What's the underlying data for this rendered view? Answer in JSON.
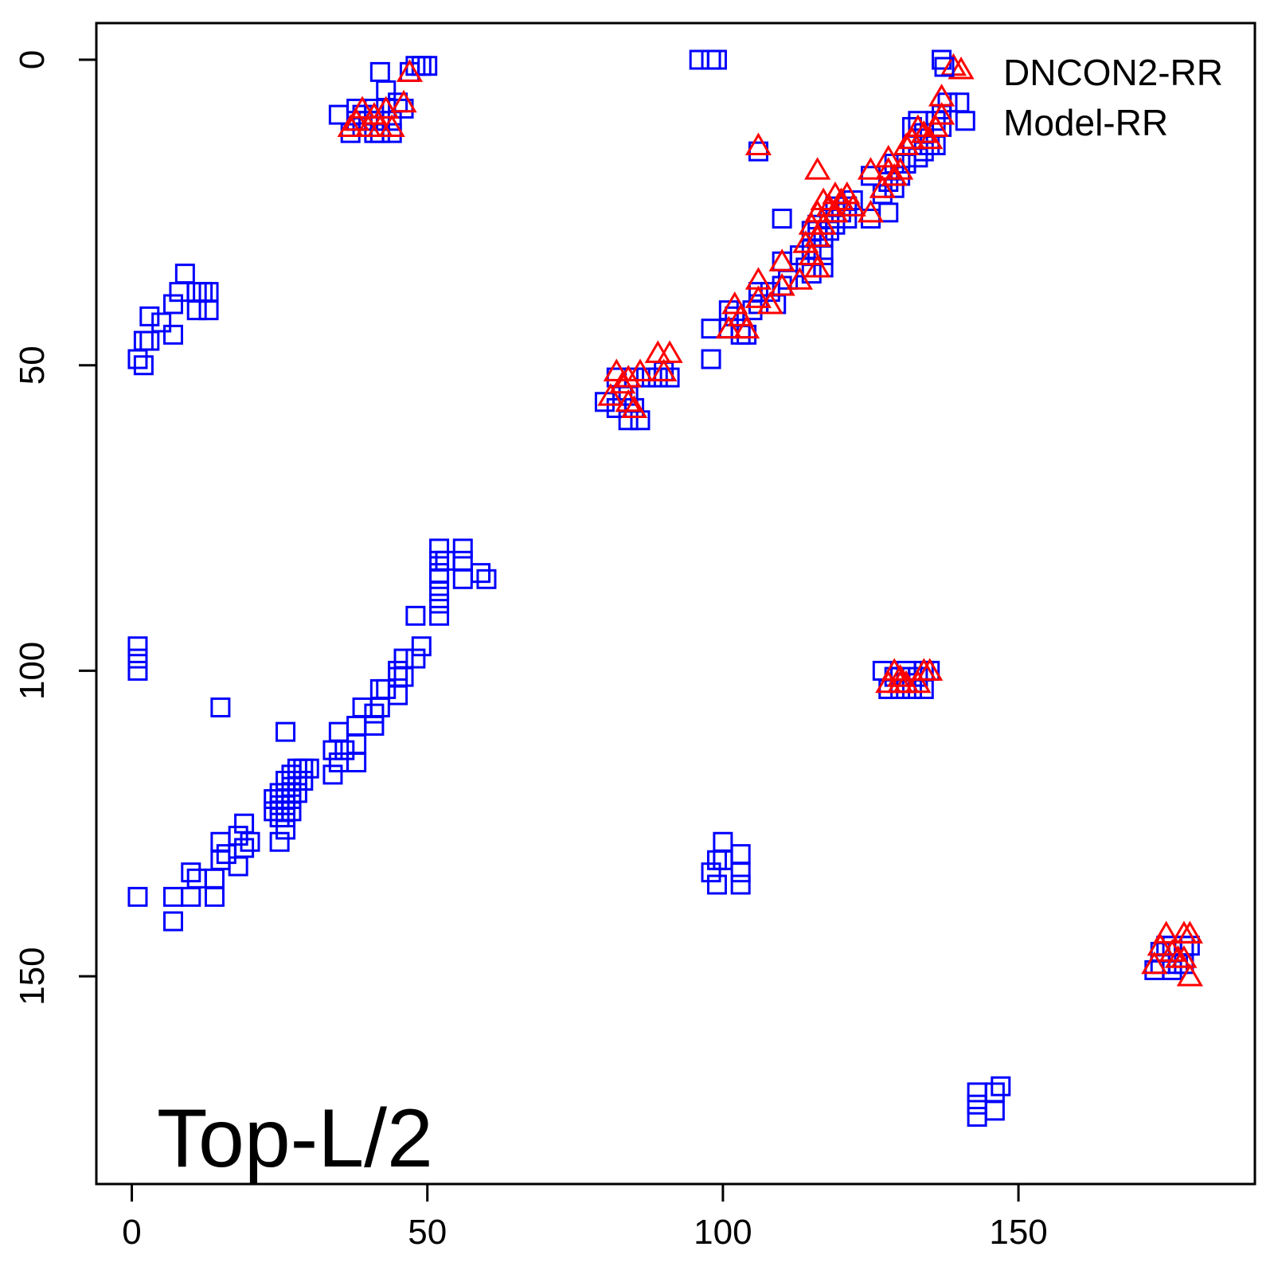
{
  "chart_data": {
    "type": "scatter",
    "title": "",
    "xlabel": "",
    "ylabel": "",
    "xlim": [
      -6,
      190
    ],
    "ylim": [
      -6,
      184
    ],
    "y_reversed": true,
    "xticks": [
      0,
      50,
      100,
      150
    ],
    "yticks": [
      0,
      50,
      100,
      150
    ],
    "annotation": "Top-L/2",
    "legend_position": "top-right",
    "legend": [
      {
        "label": "DNCON2-RR",
        "series": "dncon2",
        "marker": "triangle",
        "color": "#ff0000"
      },
      {
        "label": "Model-RR",
        "series": "model",
        "marker": "square",
        "color": "#0000ff"
      }
    ],
    "series": [
      {
        "id": "model",
        "marker": "square",
        "color": "#0000ff",
        "points": [
          [
            1,
            49
          ],
          [
            2,
            50
          ],
          [
            2,
            46
          ],
          [
            3,
            46
          ],
          [
            3,
            42
          ],
          [
            5,
            43
          ],
          [
            7,
            40
          ],
          [
            7,
            45
          ],
          [
            8,
            38
          ],
          [
            9,
            35
          ],
          [
            11,
            38
          ],
          [
            11,
            41
          ],
          [
            12,
            38
          ],
          [
            13,
            38
          ],
          [
            13,
            41
          ],
          [
            1,
            96
          ],
          [
            1,
            98
          ],
          [
            1,
            100
          ],
          [
            15,
            106
          ],
          [
            1,
            137
          ],
          [
            7,
            137
          ],
          [
            7,
            141
          ],
          [
            10,
            133
          ],
          [
            10,
            137
          ],
          [
            11,
            134
          ],
          [
            14,
            134
          ],
          [
            14,
            137
          ],
          [
            15,
            131
          ],
          [
            15,
            128
          ],
          [
            16,
            130
          ],
          [
            18,
            127
          ],
          [
            18,
            132
          ],
          [
            19,
            125
          ],
          [
            19,
            129
          ],
          [
            20,
            128
          ],
          [
            24,
            121
          ],
          [
            24,
            123
          ],
          [
            25,
            120
          ],
          [
            25,
            122
          ],
          [
            25,
            124
          ],
          [
            25,
            128
          ],
          [
            26,
            118
          ],
          [
            26,
            120
          ],
          [
            26,
            122
          ],
          [
            26,
            124
          ],
          [
            26,
            126
          ],
          [
            26,
            110
          ],
          [
            27,
            117
          ],
          [
            27,
            119
          ],
          [
            27,
            121
          ],
          [
            27,
            123
          ],
          [
            28,
            116
          ],
          [
            28,
            118
          ],
          [
            28,
            120
          ],
          [
            29,
            116
          ],
          [
            29,
            118
          ],
          [
            30,
            116
          ],
          [
            34,
            113
          ],
          [
            34,
            117
          ],
          [
            35,
            110
          ],
          [
            35,
            115
          ],
          [
            36,
            113
          ],
          [
            38,
            112
          ],
          [
            38,
            115
          ],
          [
            38,
            109
          ],
          [
            39,
            106
          ],
          [
            41,
            107
          ],
          [
            41,
            109
          ],
          [
            42,
            103
          ],
          [
            42,
            106
          ],
          [
            43,
            103
          ],
          [
            45,
            104
          ],
          [
            45,
            101
          ],
          [
            45,
            100
          ],
          [
            46,
            98
          ],
          [
            46,
            101
          ],
          [
            48,
            98
          ],
          [
            49,
            96
          ],
          [
            48,
            91
          ],
          [
            52,
            91
          ],
          [
            52,
            89
          ],
          [
            52,
            87
          ],
          [
            52,
            85
          ],
          [
            52,
            84
          ],
          [
            52,
            82
          ],
          [
            52,
            80
          ],
          [
            53,
            82
          ],
          [
            56,
            80
          ],
          [
            56,
            85
          ],
          [
            56,
            82
          ],
          [
            59,
            84
          ],
          [
            60,
            85
          ],
          [
            35,
            9
          ],
          [
            37,
            12
          ],
          [
            38,
            10
          ],
          [
            38,
            8
          ],
          [
            39,
            11
          ],
          [
            39,
            9
          ],
          [
            40,
            10
          ],
          [
            41,
            12
          ],
          [
            41,
            8
          ],
          [
            42,
            10
          ],
          [
            42,
            12
          ],
          [
            42,
            2
          ],
          [
            43,
            5
          ],
          [
            43,
            8
          ],
          [
            44,
            10
          ],
          [
            44,
            12
          ],
          [
            45,
            7
          ],
          [
            46,
            8
          ],
          [
            47,
            2
          ],
          [
            48,
            1
          ],
          [
            49,
            1
          ],
          [
            50,
            1
          ],
          [
            96,
            0
          ],
          [
            98,
            0
          ],
          [
            99,
            0
          ],
          [
            80,
            56
          ],
          [
            82,
            52
          ],
          [
            82,
            57
          ],
          [
            83,
            55
          ],
          [
            84,
            55
          ],
          [
            84,
            59
          ],
          [
            85,
            52
          ],
          [
            85,
            57
          ],
          [
            86,
            59
          ],
          [
            87,
            52
          ],
          [
            89,
            52
          ],
          [
            90,
            51
          ],
          [
            91,
            52
          ],
          [
            98,
            44
          ],
          [
            98,
            49
          ],
          [
            101,
            44
          ],
          [
            101,
            41
          ],
          [
            102,
            42
          ],
          [
            103,
            44
          ],
          [
            103,
            45
          ],
          [
            104,
            45
          ],
          [
            105,
            41
          ],
          [
            106,
            38
          ],
          [
            106,
            40
          ],
          [
            108,
            38
          ],
          [
            109,
            40
          ],
          [
            110,
            37
          ],
          [
            110,
            33
          ],
          [
            111,
            36
          ],
          [
            113,
            32
          ],
          [
            114,
            34
          ],
          [
            115,
            35
          ],
          [
            115,
            31
          ],
          [
            115,
            28
          ],
          [
            116,
            29
          ],
          [
            116,
            27
          ],
          [
            117,
            34
          ],
          [
            117,
            32
          ],
          [
            117,
            29
          ],
          [
            118,
            26
          ],
          [
            118,
            28
          ],
          [
            119,
            27
          ],
          [
            119,
            24
          ],
          [
            120,
            25
          ],
          [
            121,
            24
          ],
          [
            121,
            26
          ],
          [
            122,
            23
          ],
          [
            110,
            26
          ],
          [
            106,
            15
          ],
          [
            125,
            19
          ],
          [
            127,
            22
          ],
          [
            125,
            26
          ],
          [
            128,
            25
          ],
          [
            128,
            20
          ],
          [
            129,
            21
          ],
          [
            129,
            17
          ],
          [
            130,
            19
          ],
          [
            131,
            17
          ],
          [
            132,
            11
          ],
          [
            132,
            14
          ],
          [
            133,
            16
          ],
          [
            133,
            10
          ],
          [
            134,
            15
          ],
          [
            134,
            12
          ],
          [
            135,
            14
          ],
          [
            136,
            14
          ],
          [
            136,
            10
          ],
          [
            137,
            11
          ],
          [
            137,
            9
          ],
          [
            138,
            7
          ],
          [
            140,
            7
          ],
          [
            141,
            10
          ],
          [
            137,
            0
          ],
          [
            127,
            100
          ],
          [
            128,
            103
          ],
          [
            129,
            101
          ],
          [
            130,
            101
          ],
          [
            130,
            103
          ],
          [
            131,
            100
          ],
          [
            131,
            102
          ],
          [
            132,
            103
          ],
          [
            133,
            101
          ],
          [
            134,
            100
          ],
          [
            134,
            103
          ],
          [
            135,
            100
          ],
          [
            98,
            133
          ],
          [
            99,
            131
          ],
          [
            99,
            135
          ],
          [
            100,
            128
          ],
          [
            100,
            131
          ],
          [
            103,
            130
          ],
          [
            103,
            133
          ],
          [
            103,
            135
          ],
          [
            143,
            169
          ],
          [
            143,
            171
          ],
          [
            143,
            173
          ],
          [
            146,
            169
          ],
          [
            146,
            172
          ],
          [
            147,
            168
          ],
          [
            173,
            149
          ],
          [
            174,
            148
          ],
          [
            174,
            146
          ],
          [
            175,
            145
          ],
          [
            176,
            145
          ],
          [
            176,
            149
          ],
          [
            177,
            148
          ],
          [
            178,
            148
          ],
          [
            178,
            145
          ],
          [
            179,
            145
          ]
        ]
      },
      {
        "id": "dncon2",
        "marker": "triangle",
        "color": "#ff0000",
        "points": [
          [
            37,
            11
          ],
          [
            38,
            10
          ],
          [
            39,
            8
          ],
          [
            40,
            11
          ],
          [
            41,
            9
          ],
          [
            42,
            11
          ],
          [
            43,
            8
          ],
          [
            44,
            11
          ],
          [
            46,
            7
          ],
          [
            47,
            2
          ],
          [
            106,
            14
          ],
          [
            116,
            18
          ],
          [
            81,
            55
          ],
          [
            82,
            51
          ],
          [
            83,
            53
          ],
          [
            84,
            56
          ],
          [
            84,
            52
          ],
          [
            85,
            57
          ],
          [
            86,
            51
          ],
          [
            89,
            48
          ],
          [
            90,
            51
          ],
          [
            91,
            48
          ],
          [
            101,
            44
          ],
          [
            102,
            40
          ],
          [
            103,
            42
          ],
          [
            104,
            44
          ],
          [
            106,
            39
          ],
          [
            106,
            36
          ],
          [
            108,
            40
          ],
          [
            110,
            37
          ],
          [
            110,
            33
          ],
          [
            113,
            36
          ],
          [
            114,
            30
          ],
          [
            115,
            32
          ],
          [
            115,
            27
          ],
          [
            116,
            29
          ],
          [
            116,
            34
          ],
          [
            116,
            25
          ],
          [
            117,
            27
          ],
          [
            117,
            23
          ],
          [
            118,
            24
          ],
          [
            119,
            25
          ],
          [
            119,
            22
          ],
          [
            120,
            23
          ],
          [
            121,
            22
          ],
          [
            122,
            24
          ],
          [
            125,
            18
          ],
          [
            125,
            25
          ],
          [
            127,
            21
          ],
          [
            128,
            18
          ],
          [
            128,
            16
          ],
          [
            129,
            19
          ],
          [
            130,
            18
          ],
          [
            131,
            14
          ],
          [
            132,
            13
          ],
          [
            133,
            11
          ],
          [
            134,
            12
          ],
          [
            135,
            13
          ],
          [
            136,
            11
          ],
          [
            137,
            9
          ],
          [
            137,
            6
          ],
          [
            139,
            1
          ],
          [
            128,
            102
          ],
          [
            129,
            100
          ],
          [
            130,
            101
          ],
          [
            130,
            102
          ],
          [
            131,
            102
          ],
          [
            133,
            102
          ],
          [
            134,
            100
          ],
          [
            135,
            100
          ],
          [
            173,
            148
          ],
          [
            174,
            145
          ],
          [
            175,
            143
          ],
          [
            176,
            146
          ],
          [
            177,
            147
          ],
          [
            178,
            143
          ],
          [
            178,
            147
          ],
          [
            179,
            150
          ],
          [
            179,
            143
          ]
        ]
      }
    ]
  }
}
